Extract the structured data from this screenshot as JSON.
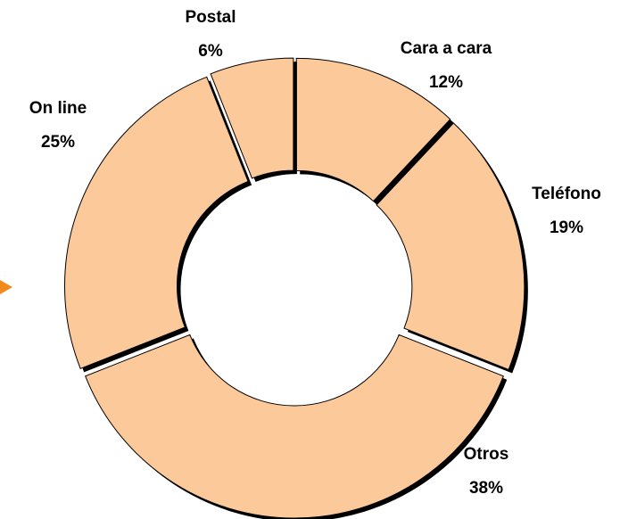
{
  "chart_data": {
    "type": "donut",
    "categories": [
      "Cara a cara",
      "Teléfono",
      "Otros",
      "On line",
      "Postal"
    ],
    "values": [
      12,
      19,
      38,
      25,
      6
    ],
    "value_labels": [
      "12%",
      "19%",
      "38%",
      "25%",
      "6%"
    ],
    "color": "#fcc99a"
  }
}
